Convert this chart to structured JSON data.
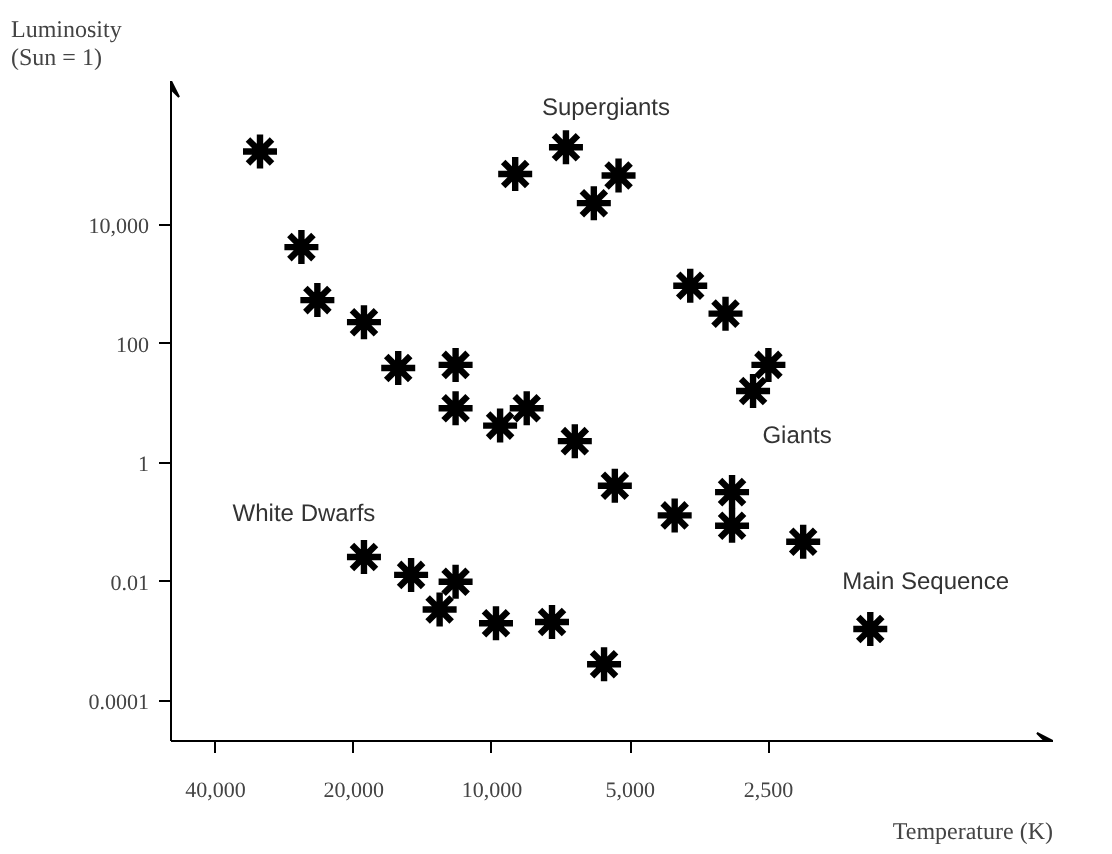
{
  "chart_data": {
    "type": "scatter",
    "xlabel": "Temperature (K)",
    "ylabel": "Luminosity\n(Sun = 1)",
    "log": "xy",
    "marker": "cross",
    "grid": false,
    "xlim": [
      50000,
      600
    ],
    "xticks": [
      {
        "value": 40000,
        "label": "40,000"
      },
      {
        "value": 20000,
        "label": "20,000"
      },
      {
        "value": 10000,
        "label": "10,000"
      },
      {
        "value": 5000,
        "label": "5,000"
      },
      {
        "value": 2500,
        "label": "2,500"
      }
    ],
    "ylim": [
      2.1e-05,
      2600000
    ],
    "yticks": [
      0.0001,
      0.01,
      1,
      100,
      {
        "value": 10000,
        "label": "10,000"
      }
    ],
    "series": [
      {
        "name": "Main Sequence",
        "color": "#000000",
        "x": [
          32000,
          26000,
          24000,
          19000,
          16000,
          12000,
          12000,
          9600,
          8400,
          6600,
          5400,
          4000,
          3000,
          3000,
          2100,
          1500
        ],
        "values": [
          170000,
          4200,
          540,
          230,
          39,
          44,
          8.2,
          4.2,
          8.2,
          2.3,
          0.41,
          0.13,
          0.32,
          0.087,
          0.047,
          0.0016
        ]
      },
      {
        "name": "Supergiants",
        "color": "#000000",
        "x": [
          8900,
          6900,
          5300,
          6000
        ],
        "values": [
          71000,
          200000,
          67000,
          23000
        ]
      },
      {
        "name": "Giants",
        "color": "#000000",
        "x": [
          3700,
          3100,
          2500,
          2700
        ],
        "values": [
          940,
          320,
          44,
          16
        ]
      },
      {
        "name": "White Dwarfs",
        "color": "#000000",
        "x": [
          19000,
          15000,
          12000,
          13000,
          9800,
          7400,
          5700
        ],
        "values": [
          0.026,
          0.013,
          0.01,
          0.0034,
          0.002,
          0.0021,
          0.00041
        ]
      }
    ]
  }
}
